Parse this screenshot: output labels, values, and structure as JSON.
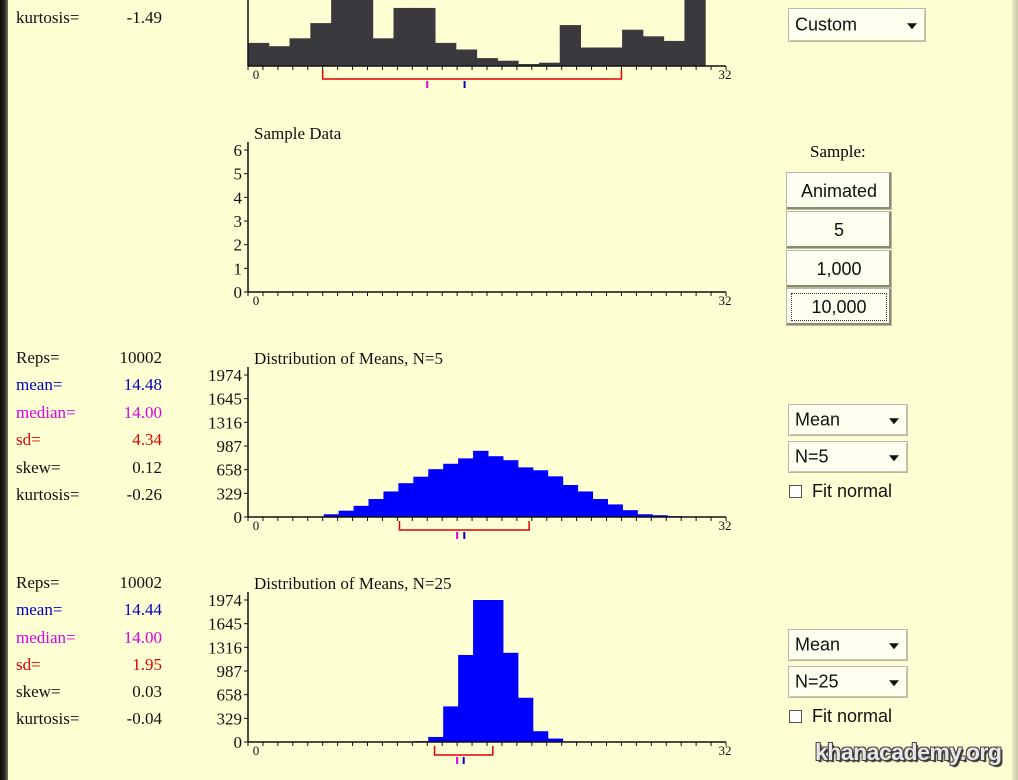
{
  "colors": {
    "background": "#ffffd4",
    "bar_dark": "#3a3a3e",
    "bar_blue": "#0000ff",
    "mean": "#0000c0",
    "median": "#e000e0",
    "sd": "#e00000",
    "text": "#111111"
  },
  "top_panel": {
    "kurtosis_label": "kurtosis=",
    "kurtosis_value": "-1.49",
    "distribution_select": "Custom"
  },
  "sample_panel": {
    "title": "Sample Data",
    "sample_label": "Sample:",
    "buttons": [
      "Animated",
      "5",
      "1,000",
      "10,000"
    ],
    "focused_button": "10,000"
  },
  "means_n5_panel": {
    "stats": {
      "reps_label": "Reps=",
      "reps_value": "10002",
      "mean_label": "mean=",
      "mean_value": "14.48",
      "median_label": "median=",
      "median_value": "14.00",
      "sd_label": "sd=",
      "sd_value": "4.34",
      "skew_label": "skew=",
      "skew_value": "0.12",
      "kurtosis_label": "kurtosis=",
      "kurtosis_value": "-0.26"
    },
    "statistic_select": "Mean",
    "n_select": "N=5",
    "fit_normal_label": "Fit normal",
    "fit_normal_checked": false
  },
  "means_n25_panel": {
    "stats": {
      "reps_label": "Reps=",
      "reps_value": "10002",
      "mean_label": "mean=",
      "mean_value": "14.44",
      "median_label": "median=",
      "median_value": "14.00",
      "sd_label": "sd=",
      "sd_value": "1.95",
      "skew_label": "skew=",
      "skew_value": "0.03",
      "kurtosis_label": "kurtosis=",
      "kurtosis_value": "-0.04"
    },
    "statistic_select": "Mean",
    "n_select": "N=25",
    "fit_normal_label": "Fit normal",
    "fit_normal_checked": false
  },
  "watermark": "khanacademy.org",
  "chart_data": [
    {
      "type": "bar",
      "title": "",
      "xlim": [
        0,
        32
      ],
      "x_tick_labels": [
        "0",
        "32"
      ],
      "values": [
        0.35,
        0.3,
        0.42,
        0.65,
        1.0,
        1.0,
        0.42,
        0.88,
        0.88,
        0.35,
        0.25,
        0.12,
        0.08,
        0.03,
        0.05,
        0.62,
        0.28,
        0.28,
        0.55,
        0.45,
        0.38,
        1.0,
        0.0
      ],
      "mean": 14.5,
      "median": 12.0,
      "sd_range": [
        5.0,
        25.0
      ]
    },
    {
      "type": "bar",
      "title": "Sample Data",
      "xlim": [
        0,
        32
      ],
      "ylim": [
        0,
        6
      ],
      "y_tick_labels": [
        "0",
        "1",
        "2",
        "3",
        "4",
        "5",
        "6"
      ],
      "x_tick_labels": [
        "0",
        "32"
      ],
      "values": []
    },
    {
      "type": "bar",
      "title": "Distribution of Means, N=5",
      "xlim": [
        0,
        32
      ],
      "ylim": [
        0,
        1974
      ],
      "y_tick_labels": [
        "0",
        "329",
        "658",
        "987",
        "1316",
        "1645",
        "1974"
      ],
      "x_tick_labels": [
        "0",
        "32"
      ],
      "values": [
        0,
        0,
        0,
        0,
        5,
        38,
        88,
        155,
        250,
        355,
        470,
        560,
        665,
        740,
        815,
        920,
        845,
        790,
        690,
        650,
        565,
        445,
        355,
        250,
        175,
        95,
        38,
        25,
        12,
        5,
        0,
        0,
        0
      ],
      "bin_width": 1,
      "mean": 14.48,
      "median": 14.0,
      "sd_range": [
        10.14,
        18.82
      ]
    },
    {
      "type": "bar",
      "title": "Distribution of Means, N=25",
      "xlim": [
        0,
        32
      ],
      "ylim": [
        0,
        1974
      ],
      "y_tick_labels": [
        "0",
        "329",
        "658",
        "987",
        "1316",
        "1645",
        "1974"
      ],
      "x_tick_labels": [
        "0",
        "32"
      ],
      "values": [
        0,
        0,
        0,
        0,
        0,
        0,
        0,
        0,
        0,
        0,
        2,
        12,
        70,
        495,
        1210,
        1974,
        1974,
        1240,
        615,
        150,
        48,
        8,
        0,
        0,
        0,
        0,
        0,
        0,
        0,
        0,
        0,
        0
      ],
      "bin_width": 1,
      "mean": 14.44,
      "median": 14.0,
      "sd_range": [
        12.49,
        16.39
      ]
    }
  ]
}
